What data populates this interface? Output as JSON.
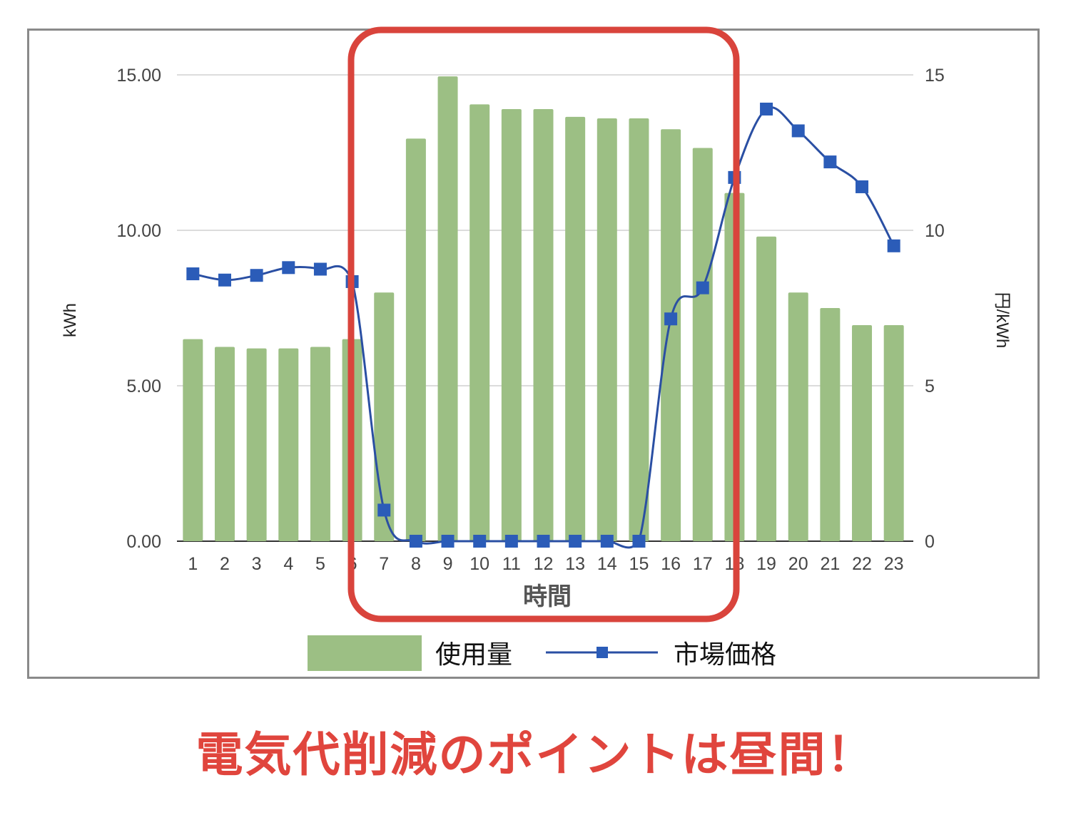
{
  "chart_data": {
    "type": "bar",
    "categories": [
      "1",
      "2",
      "3",
      "4",
      "5",
      "6",
      "7",
      "8",
      "9",
      "10",
      "11",
      "12",
      "13",
      "14",
      "15",
      "16",
      "17",
      "18",
      "19",
      "20",
      "21",
      "22",
      "23"
    ],
    "series": [
      {
        "name": "使用量",
        "type": "bar",
        "axis": "left",
        "color": "#9cbf84",
        "values": [
          6.5,
          6.25,
          6.2,
          6.2,
          6.25,
          6.5,
          8.0,
          12.95,
          14.95,
          14.05,
          13.9,
          13.9,
          13.65,
          13.6,
          13.6,
          13.25,
          12.65,
          11.2,
          9.8,
          8.0,
          7.5,
          6.95,
          6.95
        ]
      },
      {
        "name": "市場価格",
        "type": "line",
        "axis": "right",
        "color": "#2a4fa3",
        "marker_color": "#2b5cb8",
        "values": [
          8.6,
          8.4,
          8.55,
          8.8,
          8.75,
          8.35,
          1.0,
          0.0,
          0.0,
          0.0,
          0.0,
          0.0,
          0.0,
          0.0,
          0.0,
          7.15,
          8.15,
          11.7,
          13.9,
          13.2,
          12.2,
          11.4,
          9.5
        ]
      }
    ],
    "xlabel": "時間",
    "ylabel": "kWh",
    "y2label": "円/kWh",
    "ylim": [
      0,
      15
    ],
    "y2lim": [
      0,
      15
    ],
    "yticks": [
      "0.00",
      "5.00",
      "10.00",
      "15.00"
    ],
    "y2ticks": [
      "0",
      "5",
      "10",
      "15"
    ],
    "grid": true,
    "legend_position": "bottom",
    "highlight": {
      "from_category": "7",
      "to_category": "17",
      "color": "#d9443c"
    }
  },
  "caption": "電気代削減のポイントは昼間！"
}
